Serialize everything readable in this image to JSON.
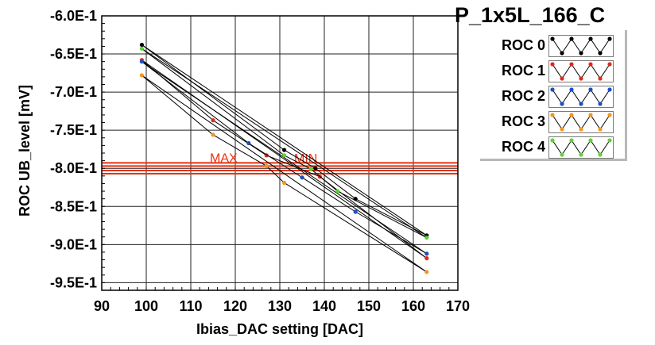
{
  "title": "P_1x5L_166_C",
  "chart_data": {
    "type": "scatter",
    "xlabel": "Ibias_DAC setting [DAC]",
    "ylabel": "ROC UB_level [mV]",
    "xlim": [
      90,
      170
    ],
    "ylim": [
      -0.96,
      -0.6
    ],
    "x_ticks": [
      90,
      100,
      110,
      120,
      130,
      140,
      150,
      160,
      170
    ],
    "x_tick_labels": [
      "90",
      "100",
      "110",
      "120",
      "130",
      "140",
      "150",
      "160",
      "170"
    ],
    "y_ticks": [
      -0.6,
      -0.65,
      -0.7,
      -0.75,
      -0.8,
      -0.85,
      -0.9,
      -0.95
    ],
    "y_tick_labels": [
      "-6.0E-1",
      "-6.5E-1",
      "-7.0E-1",
      "-7.5E-1",
      "-8.0E-1",
      "-8.5E-1",
      "-9.0E-1",
      "-9.5E-1"
    ],
    "grid": true,
    "legend_position": "right",
    "thresholds": [
      {
        "label": "MAX",
        "value": -0.795,
        "color": "#e8320f"
      },
      {
        "label": "MIN",
        "value": -0.805,
        "color": "#e8320f"
      }
    ],
    "series": [
      {
        "name": "ROC 0",
        "color": "#000000",
        "points": [
          [
            99,
            -0.638
          ],
          [
            131,
            -0.776
          ],
          [
            138,
            -0.8
          ],
          [
            147,
            -0.84
          ],
          [
            163,
            -0.888
          ]
        ]
      },
      {
        "name": "ROC 1",
        "color": "#e8251b",
        "points": [
          [
            99,
            -0.658
          ],
          [
            115,
            -0.737
          ],
          [
            127,
            -0.783
          ],
          [
            139,
            -0.811
          ],
          [
            163,
            -0.918
          ]
        ]
      },
      {
        "name": "ROC 2",
        "color": "#1c4fc2",
        "points": [
          [
            99,
            -0.66
          ],
          [
            123,
            -0.767
          ],
          [
            135,
            -0.812
          ],
          [
            147,
            -0.857
          ],
          [
            163,
            -0.912
          ]
        ]
      },
      {
        "name": "ROC 3",
        "color": "#f0961e",
        "points": [
          [
            99,
            -0.678
          ],
          [
            115,
            -0.756
          ],
          [
            127,
            -0.797
          ],
          [
            131,
            -0.819
          ],
          [
            163,
            -0.936
          ]
        ]
      },
      {
        "name": "ROC 4",
        "color": "#5ad52f",
        "points": [
          [
            99,
            -0.643
          ],
          [
            131,
            -0.783
          ],
          [
            137,
            -0.801
          ],
          [
            143,
            -0.83
          ],
          [
            163,
            -0.891
          ]
        ]
      }
    ]
  }
}
